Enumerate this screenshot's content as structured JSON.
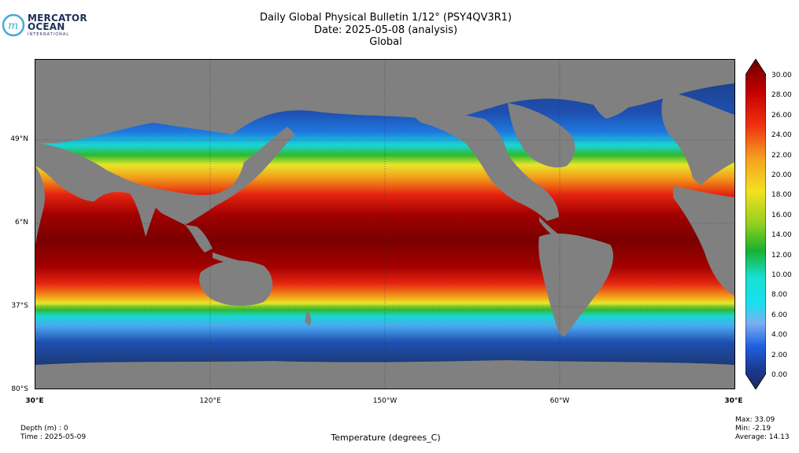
{
  "logo": {
    "line1": "MERCATOR",
    "line2": "OCEAN",
    "line3": "INTERNATIONAL"
  },
  "title": {
    "line1": "Daily Global Physical Bulletin 1/12° (PSY4QV3R1)",
    "line2": "Date: 2025-05-08 (analysis)",
    "line3": "Global"
  },
  "map": {
    "lat_labels": [
      "49°N",
      "6°N",
      "37°S",
      "80°S"
    ],
    "lon_labels": [
      "30°E",
      "120°E",
      "150°W",
      "60°W",
      "30°E"
    ],
    "colors": {
      "ocean_cold": "#1b3a75",
      "land": "#808080",
      "ice": "#ffffff",
      "warm": "#7a0000"
    }
  },
  "colorbar": {
    "ticks": [
      "30.00",
      "28.00",
      "26.00",
      "24.00",
      "22.00",
      "20.00",
      "18.00",
      "16.00",
      "14.00",
      "12.00",
      "10.00",
      "8.00",
      "6.00",
      "4.00",
      "2.00",
      "0.00"
    ],
    "min": 0,
    "max": 30
  },
  "footer": {
    "depth": "Depth (m) : 0",
    "time": "Time : 2025-05-09",
    "variable": "Temperature (degrees_C)",
    "max": "Max: 33.09",
    "min": "Min: -2.19",
    "average": "Average: 14.13"
  }
}
